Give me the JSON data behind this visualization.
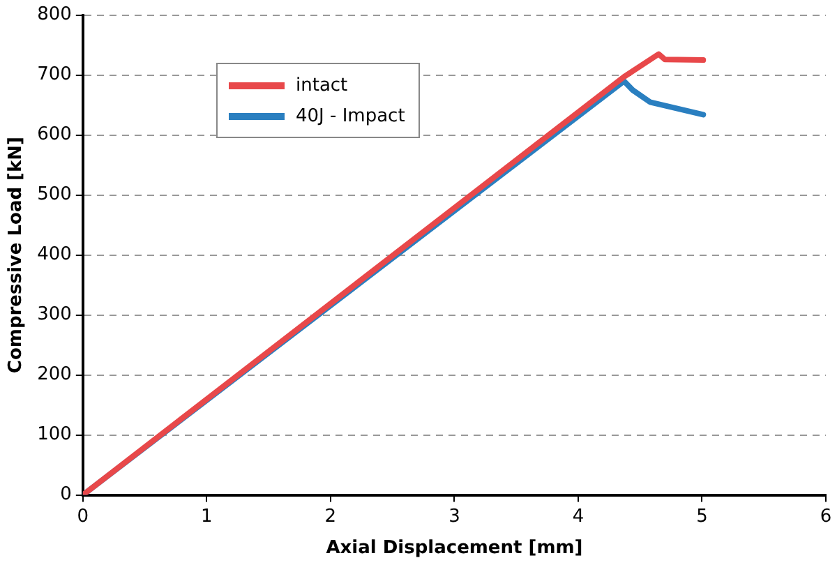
{
  "chart_data": {
    "type": "line",
    "xlabel": "Axial Displacement [mm]",
    "ylabel": "Compressive Load [kN]",
    "xlim": [
      0,
      6
    ],
    "xticks": [
      0,
      1,
      2,
      3,
      4,
      5,
      6
    ],
    "ylim": [
      0,
      800
    ],
    "yticks": [
      0,
      100,
      200,
      300,
      400,
      500,
      600,
      700,
      800
    ],
    "grid": "y",
    "legend": "top left",
    "marker": "none",
    "line_style": "solid",
    "series": [
      {
        "name": "intact",
        "color": "#e8484a",
        "x": [
          0,
          4.37,
          4.65,
          4.7,
          5.01
        ],
        "values": [
          0,
          697,
          735,
          726,
          725
        ]
      },
      {
        "name": "40J - Impact",
        "color": "#2a7fc0",
        "x": [
          0,
          4.37,
          4.44,
          4.58,
          5.01
        ],
        "values": [
          0,
          690,
          675,
          655,
          634
        ]
      }
    ]
  }
}
